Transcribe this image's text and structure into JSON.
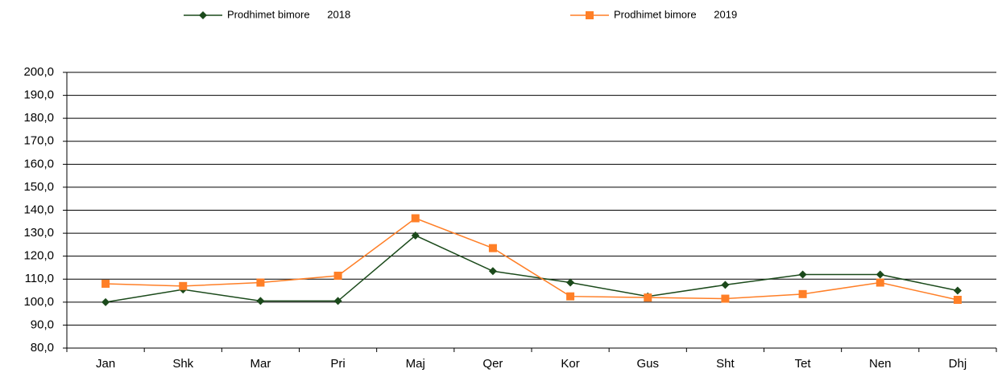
{
  "chart_data": {
    "type": "line",
    "categories": [
      "Jan",
      "Shk",
      "Mar",
      "Pri",
      "Maj",
      "Qer",
      "Kor",
      "Gus",
      "Sht",
      "Tet",
      "Nen",
      "Dhj"
    ],
    "series": [
      {
        "name": "Prodhimet bimore      2018",
        "color": "#1b4a1b",
        "marker": "diamond",
        "values": [
          100,
          105.5,
          100.5,
          100.5,
          129,
          113.5,
          108.5,
          102.5,
          107.5,
          112,
          112,
          105
        ]
      },
      {
        "name": "Prodhimet bimore      2019",
        "color": "#ff7f27",
        "marker": "square",
        "values": [
          108,
          107,
          108.5,
          111.5,
          136.5,
          123.5,
          102.5,
          102,
          101.5,
          103.5,
          108.5,
          101
        ]
      }
    ],
    "ylim": [
      80,
      200
    ],
    "yticks": [
      {
        "value": 80,
        "label": "80,0"
      },
      {
        "value": 90,
        "label": "90,0"
      },
      {
        "value": 100,
        "label": "100,0"
      },
      {
        "value": 110,
        "label": "110,0"
      },
      {
        "value": 120,
        "label": "120,0"
      },
      {
        "value": 130,
        "label": "130,0"
      },
      {
        "value": 140,
        "label": "140,0"
      },
      {
        "value": 150,
        "label": "150,0"
      },
      {
        "value": 160,
        "label": "160,0"
      },
      {
        "value": 170,
        "label": "170,0"
      },
      {
        "value": 180,
        "label": "180,0"
      },
      {
        "value": 190,
        "label": "190,0"
      },
      {
        "value": 200,
        "label": "200,0"
      }
    ],
    "grid": true,
    "legend": "top"
  }
}
